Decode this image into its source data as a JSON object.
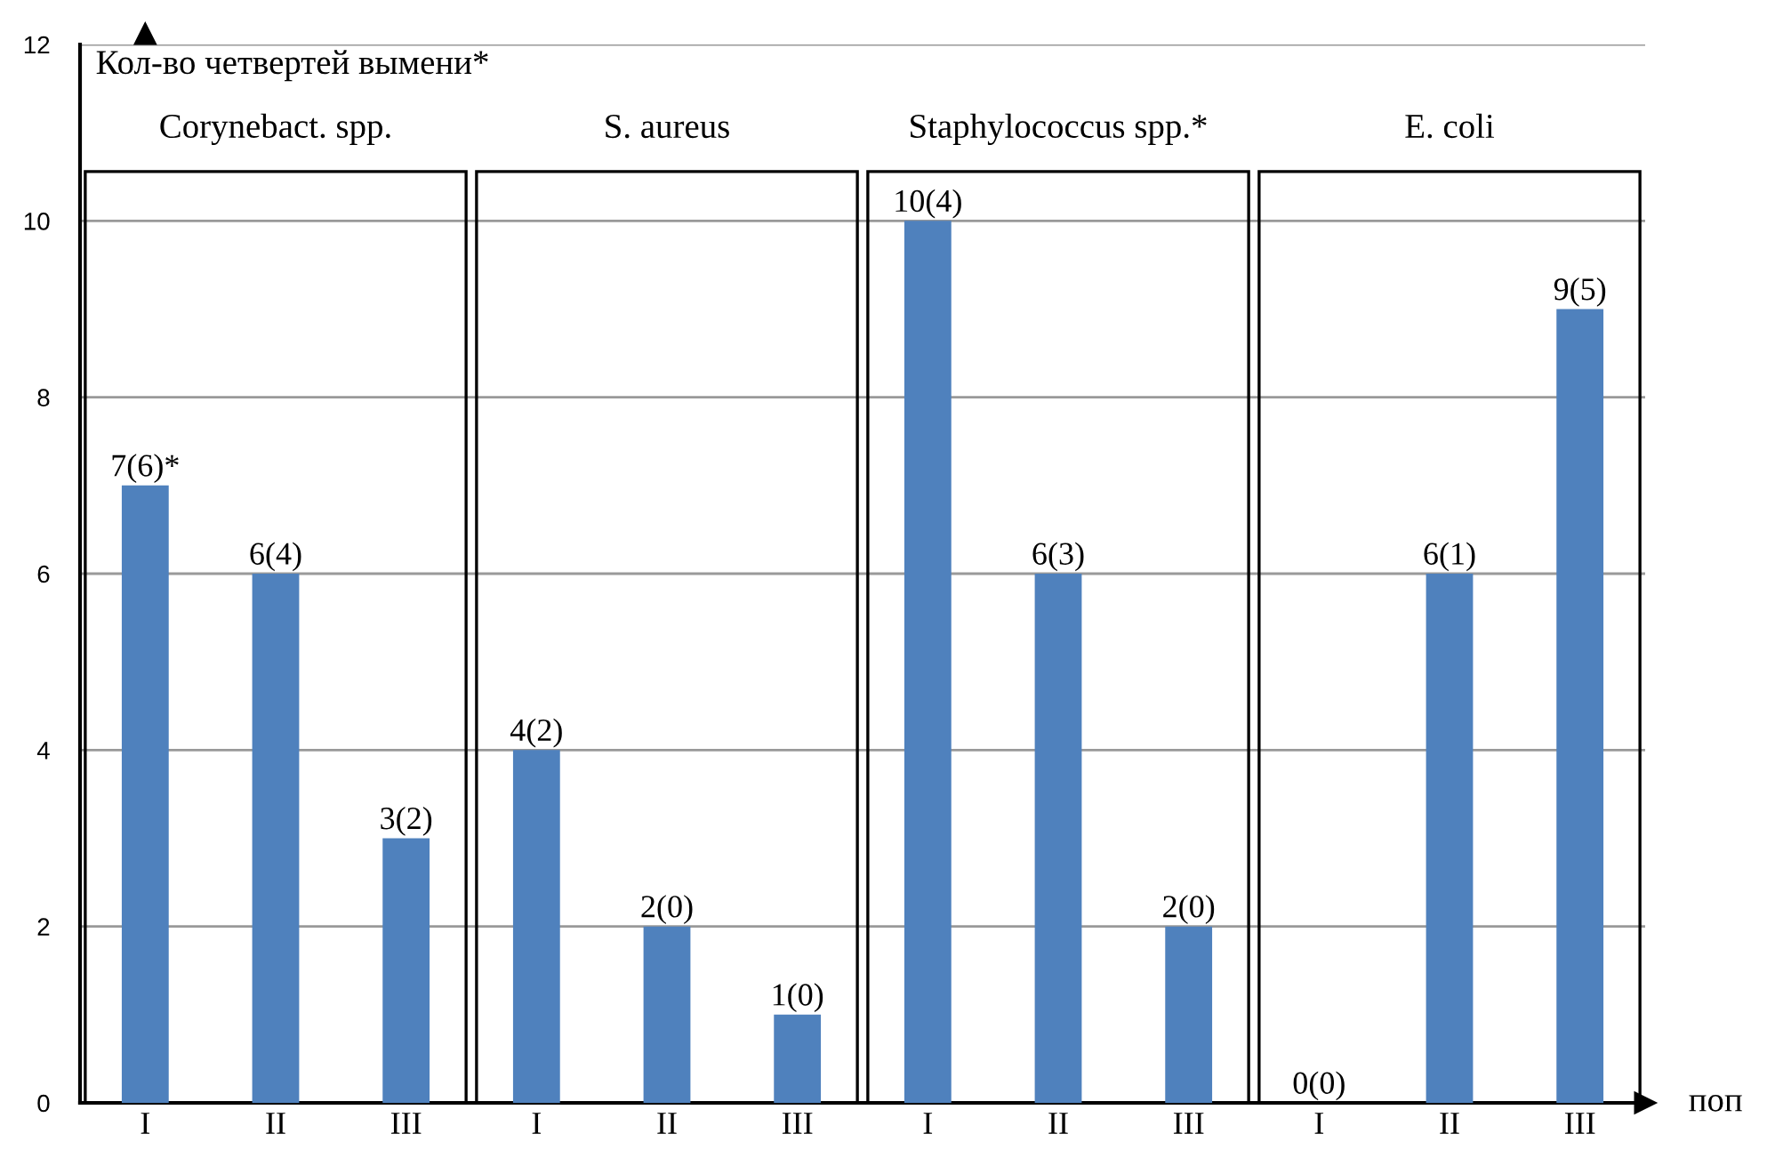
{
  "chart_data": {
    "type": "bar",
    "ylabel": "Кол-во четвертей вымени*",
    "xlabel": "поп",
    "categories": [
      "I",
      "II",
      "III",
      "I",
      "II",
      "III",
      "I",
      "II",
      "III",
      "I",
      "II",
      "III"
    ],
    "values": [
      7,
      6,
      3,
      4,
      2,
      1,
      10,
      6,
      2,
      0,
      6,
      9
    ],
    "value_labels": [
      "7(6)*",
      "6(4)",
      "3(2)",
      "4(2)",
      "2(0)",
      "1(0)",
      "10(4)",
      "6(3)",
      "2(0)",
      "0(0)",
      "6(1)",
      "9(5)"
    ],
    "color": "#4f81bd",
    "ylim": [
      0,
      12
    ],
    "yticks": [
      0,
      2,
      4,
      6,
      8,
      10,
      12
    ],
    "grid": "y",
    "annotations": [
      "Corynebact. spp.",
      "S. aureus",
      "Staphylococcus spp.*",
      "E. coli"
    ]
  }
}
